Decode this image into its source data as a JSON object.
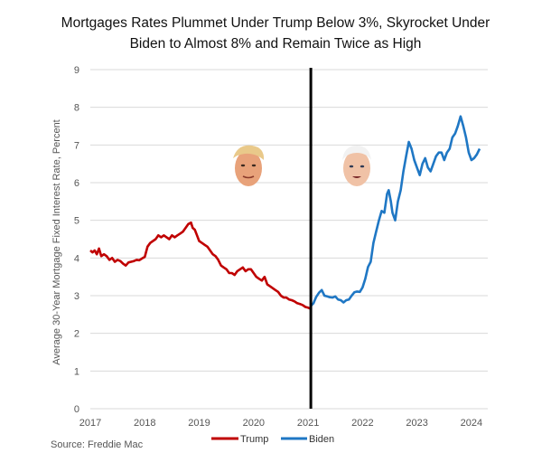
{
  "source": "Source: Freddie Mac",
  "chart_data": {
    "type": "line",
    "title_lines": [
      "Mortgages Rates Plummet Under Trump Below 3%, Skyrocket Under",
      "Biden to Almost 8% and Remain Twice as High"
    ],
    "ylabel": "Average 30-Year Mortgage Fixed Interest Rate, Percent",
    "xlabel": "",
    "ylim": [
      0,
      9
    ],
    "xlim": [
      2017.0,
      2024.3
    ],
    "yticks": [
      "0",
      "1",
      "2",
      "3",
      "4",
      "5",
      "6",
      "7",
      "8",
      "9"
    ],
    "xticks": [
      "2017",
      "2018",
      "2019",
      "2020",
      "2021",
      "2022",
      "2023",
      "2024"
    ],
    "grid": "horizontal",
    "legend_position": "bottom-center",
    "divider_x": 2021.05,
    "colors": {
      "Trump": "#c00000",
      "Biden": "#1f77c4",
      "divider": "#000000",
      "grid": "#d9d9d9"
    },
    "series": [
      {
        "name": "Trump",
        "x": [
          2017.0,
          2017.04,
          2017.08,
          2017.12,
          2017.16,
          2017.2,
          2017.25,
          2017.3,
          2017.35,
          2017.4,
          2017.45,
          2017.5,
          2017.55,
          2017.6,
          2017.65,
          2017.7,
          2017.75,
          2017.8,
          2017.85,
          2017.9,
          2017.95,
          2018.0,
          2018.05,
          2018.1,
          2018.15,
          2018.2,
          2018.25,
          2018.3,
          2018.35,
          2018.4,
          2018.45,
          2018.5,
          2018.55,
          2018.6,
          2018.65,
          2018.7,
          2018.75,
          2018.8,
          2018.85,
          2018.88,
          2018.92,
          2018.96,
          2019.0,
          2019.05,
          2019.1,
          2019.15,
          2019.2,
          2019.25,
          2019.3,
          2019.35,
          2019.4,
          2019.45,
          2019.5,
          2019.55,
          2019.6,
          2019.65,
          2019.7,
          2019.75,
          2019.8,
          2019.85,
          2019.9,
          2019.95,
          2020.0,
          2020.05,
          2020.1,
          2020.15,
          2020.2,
          2020.25,
          2020.3,
          2020.35,
          2020.4,
          2020.45,
          2020.5,
          2020.55,
          2020.6,
          2020.65,
          2020.7,
          2020.75,
          2020.8,
          2020.85,
          2020.9,
          2020.95,
          2021.0,
          2021.05
        ],
        "y": [
          4.2,
          4.15,
          4.2,
          4.1,
          4.25,
          4.05,
          4.1,
          4.05,
          3.95,
          4.0,
          3.9,
          3.95,
          3.92,
          3.85,
          3.8,
          3.88,
          3.9,
          3.92,
          3.95,
          3.94,
          3.99,
          4.03,
          4.3,
          4.4,
          4.45,
          4.5,
          4.6,
          4.55,
          4.6,
          4.55,
          4.5,
          4.6,
          4.55,
          4.6,
          4.65,
          4.7,
          4.8,
          4.9,
          4.94,
          4.8,
          4.75,
          4.6,
          4.45,
          4.4,
          4.35,
          4.3,
          4.2,
          4.1,
          4.05,
          3.95,
          3.8,
          3.75,
          3.7,
          3.6,
          3.6,
          3.55,
          3.65,
          3.7,
          3.75,
          3.65,
          3.7,
          3.7,
          3.6,
          3.5,
          3.45,
          3.4,
          3.5,
          3.3,
          3.25,
          3.2,
          3.15,
          3.1,
          3.0,
          2.95,
          2.95,
          2.9,
          2.88,
          2.85,
          2.8,
          2.78,
          2.75,
          2.7,
          2.68,
          2.65
        ]
      },
      {
        "name": "Biden",
        "x": [
          2021.05,
          2021.1,
          2021.15,
          2021.2,
          2021.25,
          2021.3,
          2021.35,
          2021.4,
          2021.45,
          2021.5,
          2021.55,
          2021.6,
          2021.65,
          2021.7,
          2021.75,
          2021.8,
          2021.85,
          2021.9,
          2021.95,
          2022.0,
          2022.05,
          2022.1,
          2022.15,
          2022.2,
          2022.25,
          2022.3,
          2022.35,
          2022.4,
          2022.45,
          2022.48,
          2022.52,
          2022.55,
          2022.6,
          2022.65,
          2022.7,
          2022.75,
          2022.8,
          2022.85,
          2022.9,
          2022.95,
          2023.0,
          2023.05,
          2023.1,
          2023.15,
          2023.2,
          2023.25,
          2023.3,
          2023.35,
          2023.4,
          2023.45,
          2023.5,
          2023.55,
          2023.6,
          2023.65,
          2023.7,
          2023.75,
          2023.8,
          2023.85,
          2023.9,
          2023.95,
          2024.0,
          2024.05,
          2024.1,
          2024.15
        ],
        "y": [
          2.73,
          2.8,
          2.97,
          3.08,
          3.15,
          3.0,
          2.98,
          2.96,
          2.95,
          2.98,
          2.9,
          2.88,
          2.82,
          2.88,
          2.9,
          3.0,
          3.09,
          3.11,
          3.1,
          3.22,
          3.45,
          3.76,
          3.9,
          4.4,
          4.7,
          5.0,
          5.25,
          5.2,
          5.7,
          5.8,
          5.5,
          5.2,
          5.0,
          5.5,
          5.8,
          6.3,
          6.7,
          7.08,
          6.9,
          6.6,
          6.4,
          6.2,
          6.5,
          6.65,
          6.4,
          6.3,
          6.5,
          6.7,
          6.8,
          6.8,
          6.6,
          6.8,
          6.9,
          7.2,
          7.3,
          7.5,
          7.76,
          7.5,
          7.2,
          6.8,
          6.6,
          6.65,
          6.75,
          6.9
        ]
      }
    ]
  }
}
